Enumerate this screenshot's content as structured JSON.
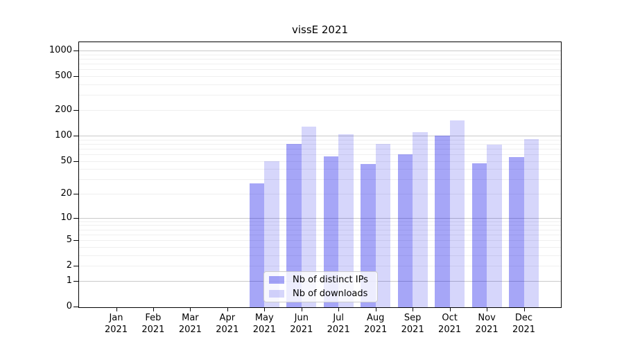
{
  "chart_data": {
    "type": "bar",
    "title": "vissE 2021",
    "categories": [
      "Jan 2021",
      "Feb 2021",
      "Mar 2021",
      "Apr 2021",
      "May 2021",
      "Jun 2021",
      "Jul 2021",
      "Aug 2021",
      "Sep 2021",
      "Oct 2021",
      "Nov 2021",
      "Dec 2021"
    ],
    "series": [
      {
        "name": "Nb of distinct IPs",
        "color": "rgba(0,0,232,0.35)",
        "values": [
          0,
          0,
          0,
          0,
          27,
          79,
          57,
          46,
          60,
          100,
          47,
          56
        ]
      },
      {
        "name": "Nb of downloads",
        "color": "rgba(0,0,232,0.16)",
        "values": [
          0,
          0,
          0,
          0,
          50,
          128,
          104,
          80,
          110,
          151,
          78,
          91
        ]
      }
    ],
    "y_axis": {
      "scale": "log1p",
      "ticks": [
        0,
        1,
        2,
        5,
        10,
        20,
        50,
        100,
        200,
        500,
        1000
      ],
      "max": 1300
    },
    "grid": {
      "major_color": "#c9c9c9",
      "minor_color": "#efefef",
      "major_lines_at": [
        1,
        10,
        100,
        1000
      ]
    },
    "legend": {
      "position": "lower center"
    }
  }
}
